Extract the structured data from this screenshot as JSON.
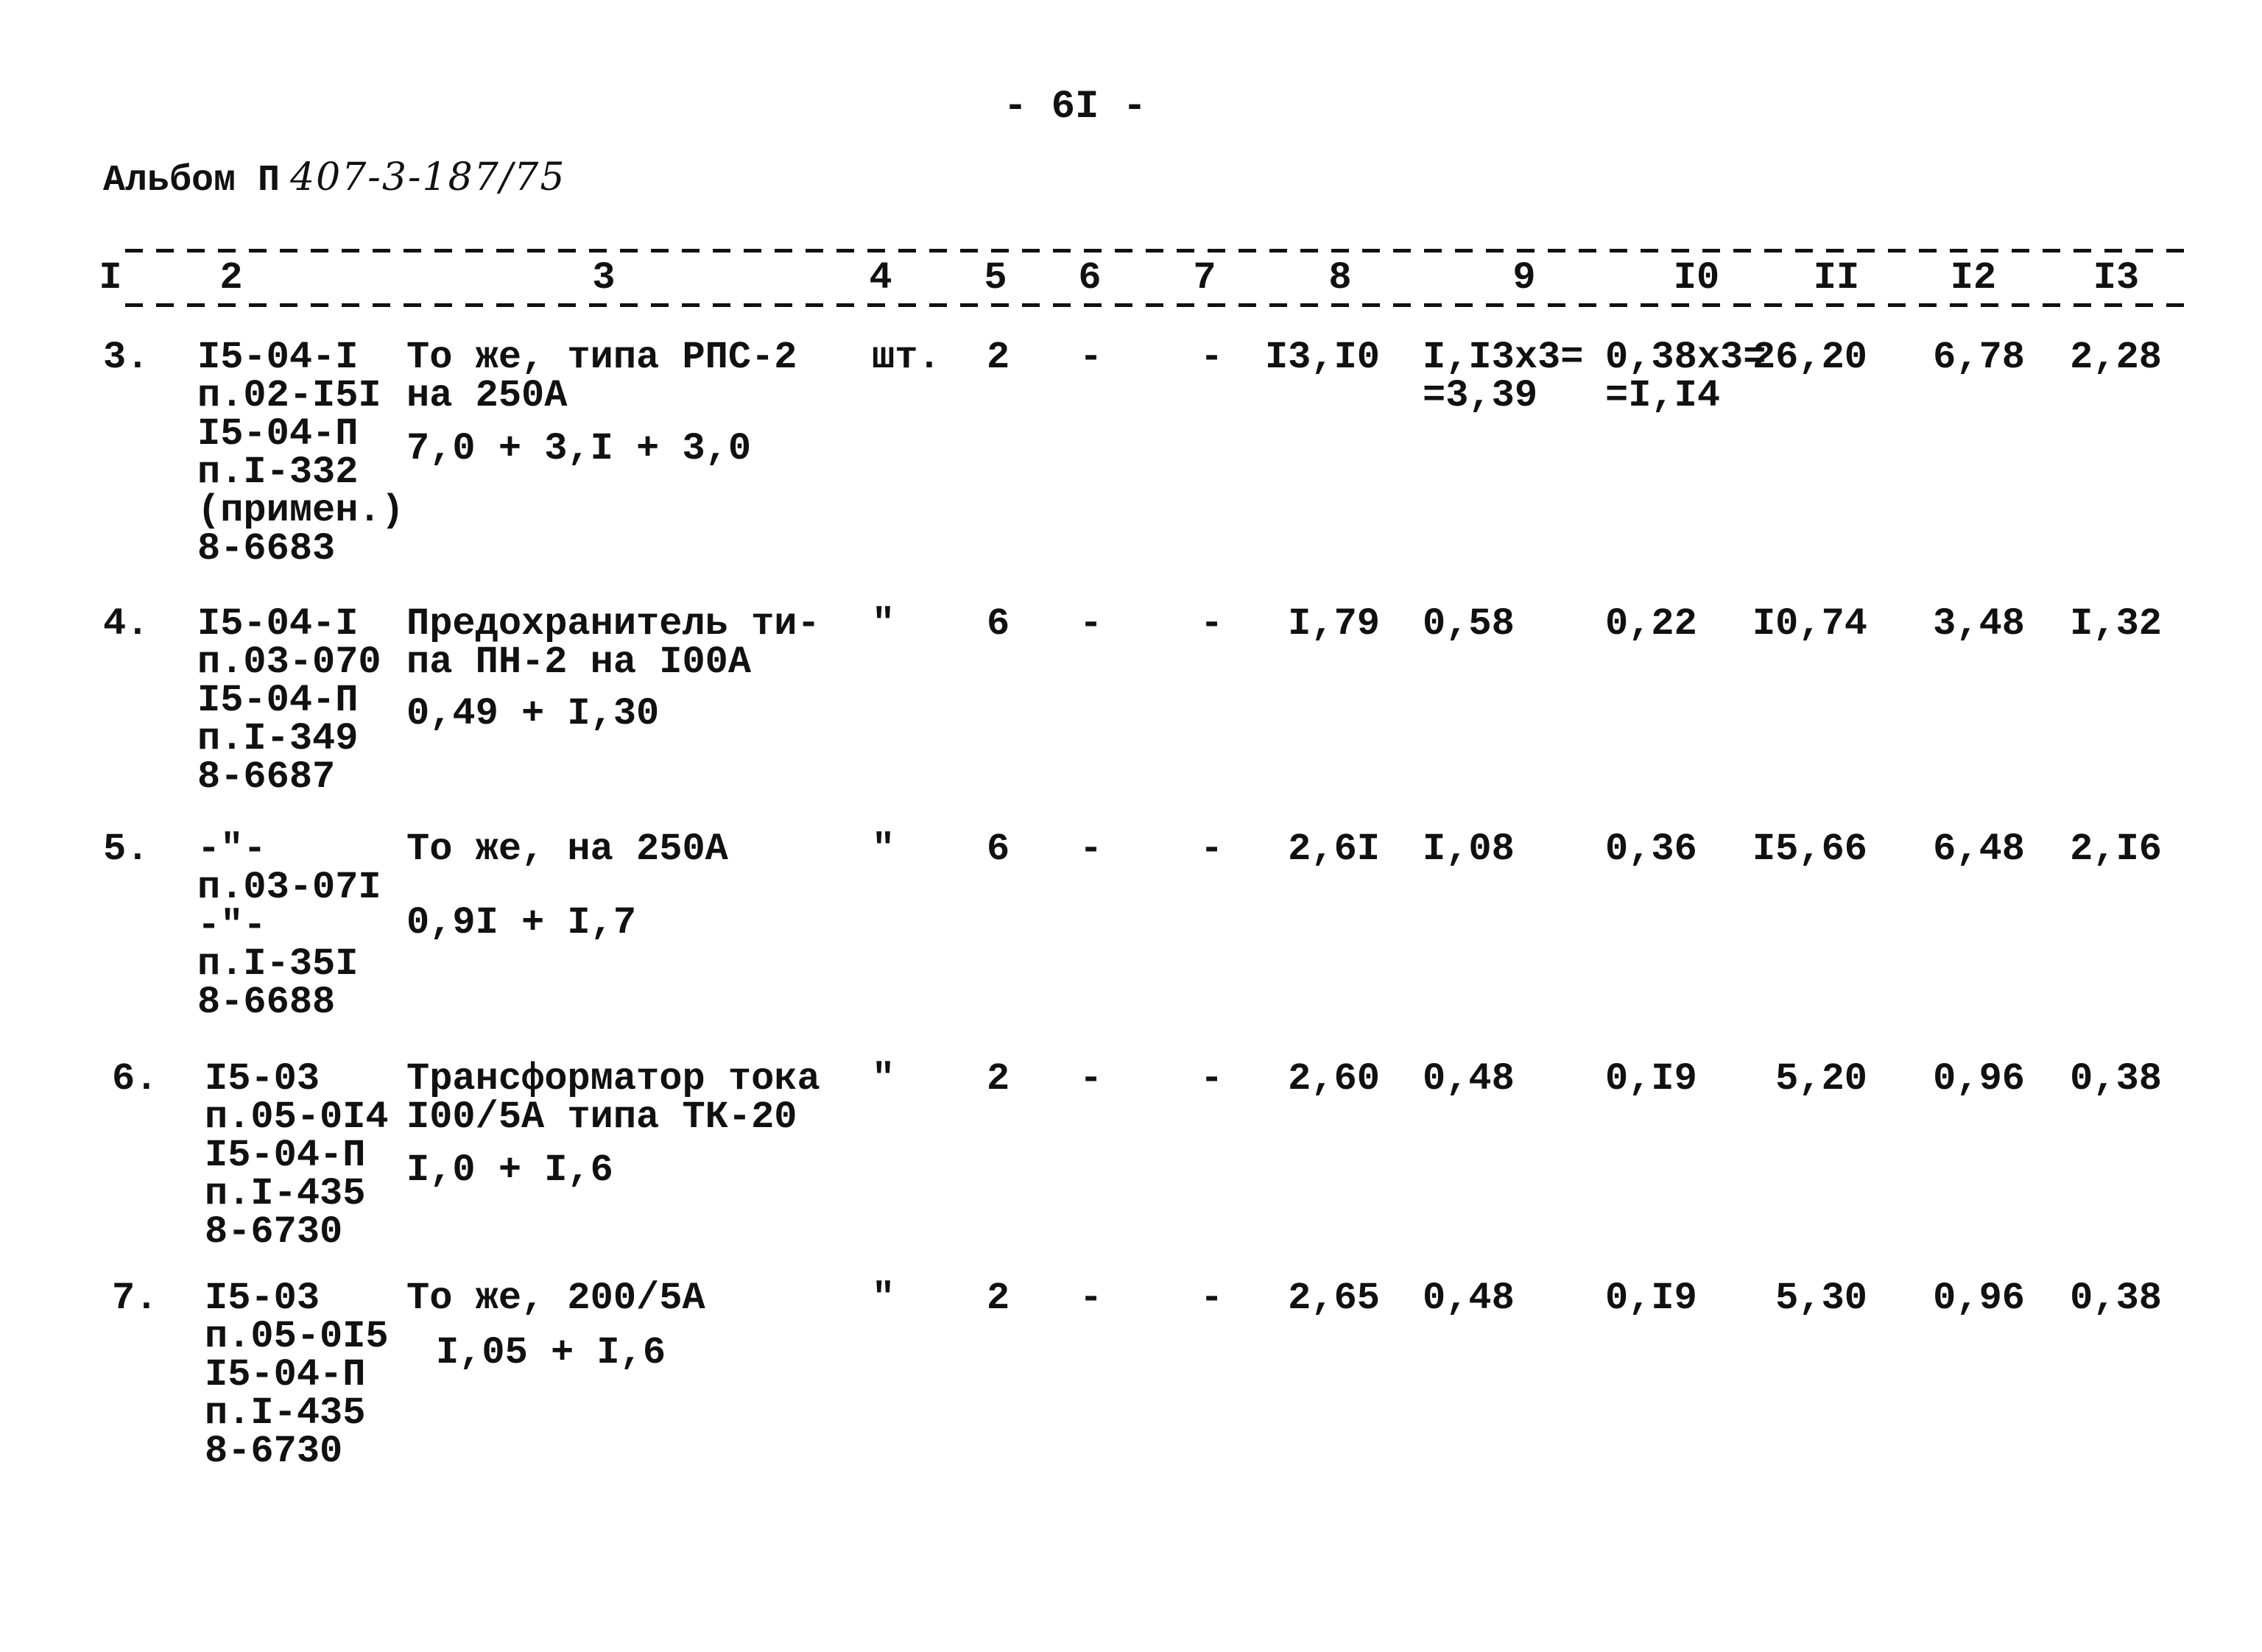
{
  "page_number": "- 6I -",
  "album": {
    "label": "Альбом П",
    "code": "407-3-187/75"
  },
  "header_columns": [
    "I",
    "2",
    "3",
    "4",
    "5",
    "6",
    "7",
    "8",
    "9",
    "I0",
    "II",
    "I2",
    "I3"
  ],
  "rows": [
    {
      "num": "3.",
      "c2": "I5-04-I\nп.02-I5I\nI5-04-П\nп.I-332\n(примен.)\n8-6683",
      "c3": "То же, типа РПС-2\nна 250А",
      "formula": "7,0 + 3,I + 3,0",
      "c4": "шт.",
      "c5": "2",
      "c6": "-",
      "c7": "-",
      "c8": "I3,I0",
      "c9": "I,I3x3=\n=3,39",
      "c10": "0,38x3=\n=I,I4",
      "c11": "26,20",
      "c12": "6,78",
      "c13": "2,28"
    },
    {
      "num": "4.",
      "c2": "I5-04-I\nп.03-070\nI5-04-П\nп.I-349\n8-6687",
      "c3": "Предохранитель ти-\nпа ПН-2 на I00А",
      "formula": "0,49 + I,30",
      "c4": "\"",
      "c5": "6",
      "c6": "-",
      "c7": "-",
      "c8": "I,79",
      "c9": "0,58",
      "c10": "0,22",
      "c11": "I0,74",
      "c12": "3,48",
      "c13": "I,32"
    },
    {
      "num": "5.",
      "c2": "-\"-\nп.03-07I\n-\"-\nп.I-35I\n8-6688",
      "c3": "То же, на 250А",
      "formula": "0,9I + I,7",
      "c4": "\"",
      "c5": "6",
      "c6": "-",
      "c7": "-",
      "c8": "2,6I",
      "c9": "I,08",
      "c10": "0,36",
      "c11": "I5,66",
      "c12": "6,48",
      "c13": "2,I6"
    },
    {
      "num": "6.",
      "c2": "I5-03\nп.05-0I4\nI5-04-П\nп.I-435\n8-6730",
      "c3": "Трансформатор тока\nI00/5А типа ТК-20",
      "formula": "I,0 + I,6",
      "c4": "\"",
      "c5": "2",
      "c6": "-",
      "c7": "-",
      "c8": "2,60",
      "c9": "0,48",
      "c10": "0,I9",
      "c11": "5,20",
      "c12": "0,96",
      "c13": "0,38"
    },
    {
      "num": "7.",
      "c2": "I5-03\nп.05-0I5\nI5-04-П\nп.I-435\n8-6730",
      "c3": "То же, 200/5А",
      "formula": "I,05 + I,6",
      "c4": "\"",
      "c5": "2",
      "c6": "-",
      "c7": "-",
      "c8": "2,65",
      "c9": "0,48",
      "c10": "0,I9",
      "c11": "5,30",
      "c12": "0,96",
      "c13": "0,38"
    }
  ]
}
